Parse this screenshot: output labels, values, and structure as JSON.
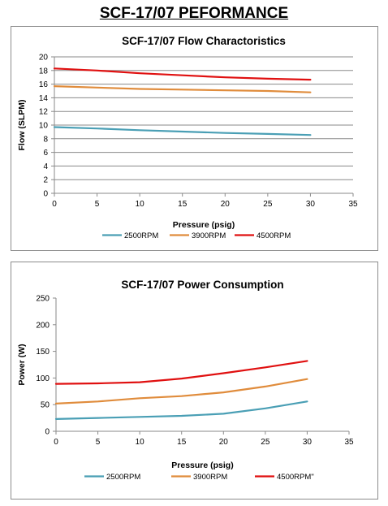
{
  "page": {
    "title": "SCF-17/07 PEFORMANCE"
  },
  "chart_data": [
    {
      "type": "line",
      "title": "SCF-17/07 Flow Charactoristics",
      "xlabel": "Pressure (psig)",
      "ylabel": "Flow (SLPM)",
      "xlim": [
        0,
        35
      ],
      "ylim": [
        0,
        20
      ],
      "xticks": [
        0,
        5,
        10,
        15,
        20,
        25,
        30,
        35
      ],
      "yticks": [
        0,
        2,
        4,
        6,
        8,
        10,
        12,
        14,
        16,
        18,
        20
      ],
      "grid": "horizontal",
      "legend": "bottom",
      "series": [
        {
          "name": "2500RPM",
          "color": "#4a9fb5",
          "x": [
            0,
            5,
            10,
            15,
            20,
            25,
            30
          ],
          "y": [
            9.7,
            9.5,
            9.25,
            9.05,
            8.85,
            8.7,
            8.55
          ]
        },
        {
          "name": "3900RPM",
          "color": "#e08c3c",
          "x": [
            0,
            5,
            10,
            15,
            20,
            25,
            30
          ],
          "y": [
            15.7,
            15.5,
            15.3,
            15.2,
            15.1,
            15.0,
            14.8
          ]
        },
        {
          "name": "4500RPM",
          "color": "#e01010",
          "x": [
            0,
            5,
            10,
            15,
            20,
            25,
            30
          ],
          "y": [
            18.3,
            18.0,
            17.6,
            17.3,
            17.0,
            16.8,
            16.65
          ]
        }
      ]
    },
    {
      "type": "line",
      "title": "SCF-17/07 Power Consumption",
      "xlabel": "Pressure (psig)",
      "ylabel": "Power (W)",
      "xlim": [
        0,
        35
      ],
      "ylim": [
        0,
        250
      ],
      "xticks": [
        0,
        5,
        10,
        15,
        20,
        25,
        30,
        35
      ],
      "yticks": [
        0,
        50,
        100,
        150,
        200,
        250
      ],
      "grid": "none",
      "legend": "bottom",
      "series": [
        {
          "name": "2500RPM",
          "color": "#4a9fb5",
          "x": [
            0,
            5,
            10,
            15,
            20,
            25,
            30
          ],
          "y": [
            23,
            25,
            27,
            29,
            33,
            43,
            56
          ]
        },
        {
          "name": "3900RPM",
          "color": "#e08c3c",
          "x": [
            0,
            5,
            10,
            15,
            20,
            25,
            30
          ],
          "y": [
            52,
            56,
            62,
            66,
            73,
            84,
            98
          ]
        },
        {
          "name": "4500RPM''",
          "color": "#e01010",
          "x": [
            0,
            5,
            10,
            15,
            20,
            25,
            30
          ],
          "y": [
            89,
            90,
            92,
            99,
            109,
            120,
            132
          ]
        }
      ]
    }
  ]
}
